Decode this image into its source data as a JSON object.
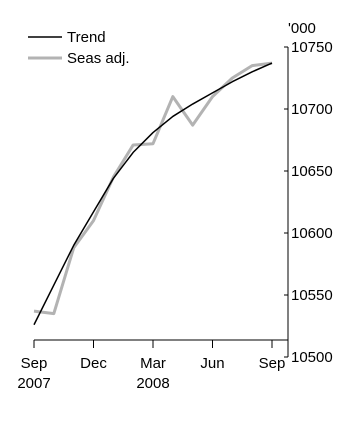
{
  "chart_data": {
    "type": "line",
    "x": [
      "Sep 2007",
      "Oct 2007",
      "Nov 2007",
      "Dec 2007",
      "Jan 2008",
      "Feb 2008",
      "Mar 2008",
      "Apr 2008",
      "May 2008",
      "Jun 2008",
      "Jul 2008",
      "Aug 2008",
      "Sep 2008"
    ],
    "series": [
      {
        "name": "Trend",
        "color": "#000000",
        "values": [
          10526,
          10558,
          10590,
          10617,
          10644,
          10665,
          10681,
          10694,
          10704,
          10713,
          10722,
          10730,
          10737
        ]
      },
      {
        "name": "Seas adj.",
        "color": "#b3b3b3",
        "values": [
          10537,
          10535,
          10588,
          10610,
          10645,
          10671,
          10672,
          10710,
          10687,
          10710,
          10725,
          10735,
          10737
        ]
      }
    ],
    "y_unit": "'000",
    "ylim": [
      10500,
      10750
    ],
    "y_ticks": [
      10750,
      10700,
      10650,
      10600,
      10550,
      10500
    ],
    "x_tick_labels": [
      {
        "label": "Sep",
        "year": "2007",
        "index": 0
      },
      {
        "label": "Dec",
        "year": "",
        "index": 3
      },
      {
        "label": "Mar",
        "year": "2008",
        "index": 6
      },
      {
        "label": "Jun",
        "year": "",
        "index": 9
      },
      {
        "label": "Sep",
        "year": "",
        "index": 12
      }
    ],
    "legend_position": "top-left",
    "grid": false
  }
}
